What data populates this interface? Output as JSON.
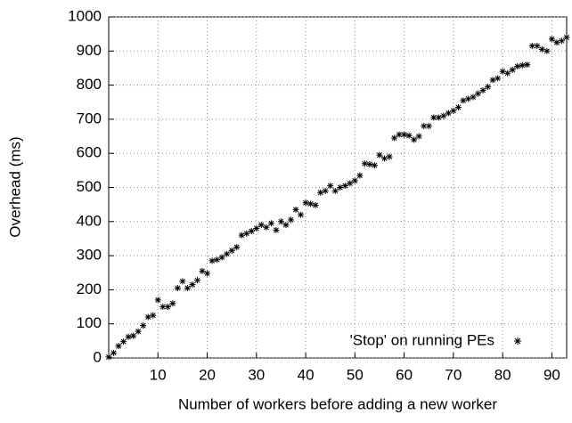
{
  "chart_data": {
    "type": "scatter",
    "xlabel": "Number of workers before adding a new worker",
    "ylabel": "Overhead (ms)",
    "xlim": [
      0,
      93
    ],
    "ylim": [
      0,
      1000
    ],
    "xticks": [
      10,
      20,
      30,
      40,
      50,
      60,
      70,
      80,
      90
    ],
    "yticks": [
      0,
      100,
      200,
      300,
      400,
      500,
      600,
      700,
      800,
      900,
      1000
    ],
    "grid": true,
    "legend": "lower right",
    "series": [
      {
        "name": "'Stop' on running PEs",
        "color": "#000000",
        "x": [
          0,
          1,
          2,
          3,
          4,
          5,
          6,
          7,
          8,
          9,
          10,
          11,
          12,
          13,
          14,
          15,
          16,
          17,
          18,
          19,
          20,
          21,
          22,
          23,
          24,
          25,
          26,
          27,
          28,
          29,
          30,
          31,
          32,
          33,
          34,
          35,
          36,
          37,
          38,
          39,
          40,
          41,
          42,
          43,
          44,
          45,
          46,
          47,
          48,
          49,
          50,
          51,
          52,
          53,
          54,
          55,
          56,
          57,
          58,
          59,
          60,
          61,
          62,
          63,
          64,
          65,
          66,
          67,
          68,
          69,
          70,
          71,
          72,
          73,
          74,
          75,
          76,
          77,
          78,
          79,
          80,
          81,
          82,
          83,
          84,
          85,
          86,
          87,
          88,
          89,
          90,
          91,
          92,
          93
        ],
        "values": [
          3,
          15,
          35,
          48,
          62,
          65,
          78,
          95,
          120,
          125,
          170,
          150,
          150,
          160,
          205,
          225,
          205,
          215,
          228,
          255,
          248,
          285,
          288,
          295,
          305,
          315,
          325,
          360,
          365,
          372,
          380,
          390,
          383,
          395,
          375,
          400,
          390,
          405,
          435,
          420,
          455,
          452,
          448,
          485,
          490,
          505,
          490,
          500,
          505,
          512,
          520,
          535,
          570,
          568,
          565,
          595,
          585,
          590,
          645,
          655,
          655,
          652,
          640,
          650,
          680,
          680,
          705,
          705,
          710,
          718,
          725,
          735,
          755,
          760,
          765,
          775,
          785,
          795,
          815,
          820,
          840,
          835,
          845,
          855,
          858,
          860,
          915,
          915,
          905,
          900,
          935,
          925,
          930,
          940
        ]
      }
    ]
  }
}
